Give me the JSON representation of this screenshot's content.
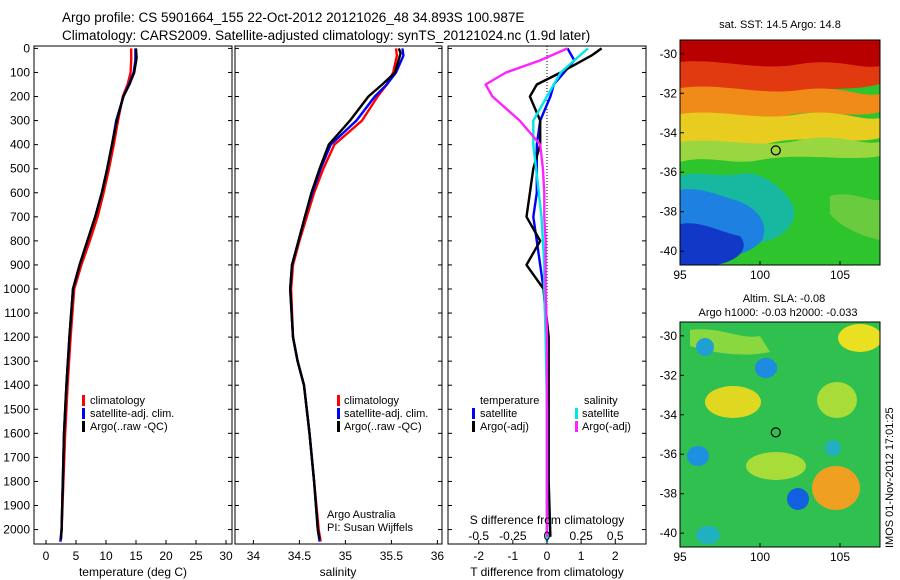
{
  "header": {
    "line1": "Argo profile: CS 5901664_155 22-Oct-2012 20121026_48 34.893S 100.987E",
    "line2": "Climatology: CARS2009. Satellite-adjusted climatology: synTS_20121024.nc (1.9d later)"
  },
  "colors": {
    "climatology": "#ff0000",
    "satellite": "#0000ff",
    "argo": "#000000",
    "sal_satellite": "#00e5e5",
    "sal_argo": "#ff22ff"
  },
  "chart_data": [
    {
      "id": "temperature",
      "type": "line",
      "xlabel": "temperature (deg C)",
      "xlim": [
        -2,
        31
      ],
      "xticks": [
        0,
        5,
        10,
        15,
        20,
        25,
        30
      ],
      "xticklabels": [
        "0",
        "5",
        "10",
        "15",
        "20",
        "25",
        "30"
      ],
      "ylim": [
        2060,
        -10
      ],
      "yticks": [
        0,
        100,
        200,
        300,
        400,
        500,
        600,
        700,
        800,
        900,
        1000,
        1100,
        1200,
        1300,
        1400,
        1500,
        1600,
        1700,
        1800,
        1900,
        2000
      ],
      "yticklabels": [
        "0",
        "100",
        "200",
        "300",
        "400",
        "500",
        "600",
        "700",
        "800",
        "900",
        "1000",
        "1100",
        "1200",
        "1300",
        "1400",
        "1500",
        "1600",
        "1700",
        "1800",
        "1900",
        "2000"
      ],
      "legend": {
        "position": "bottom-right",
        "items": [
          "climatology",
          "satellite-adj. clim.",
          "Argo(..raw -QC)"
        ]
      },
      "series": [
        {
          "name": "climatology",
          "color": "#ff0000",
          "x": [
            14.2,
            14.2,
            14.1,
            13.6,
            12.8,
            12.0,
            11.3,
            10.5,
            9.6,
            8.6,
            7.3,
            5.9,
            4.7,
            4.1,
            3.6,
            3.2,
            2.9,
            2.6,
            2.4
          ],
          "y": [
            0,
            50,
            100,
            150,
            200,
            300,
            400,
            500,
            600,
            700,
            800,
            900,
            1000,
            1200,
            1400,
            1600,
            1800,
            2000,
            2050
          ]
        },
        {
          "name": "satellite-adj. clim.",
          "color": "#0000ff",
          "x": [
            14.9,
            14.9,
            14.6,
            13.8,
            12.9,
            11.7,
            11.0,
            10.2,
            9.3,
            8.2,
            6.9,
            5.6,
            4.5,
            3.9,
            3.4,
            3.0,
            2.8,
            2.6,
            2.4
          ],
          "y": [
            0,
            50,
            100,
            150,
            200,
            300,
            400,
            500,
            600,
            700,
            800,
            900,
            1000,
            1200,
            1400,
            1600,
            1800,
            2000,
            2050
          ]
        },
        {
          "name": "Argo(..raw -QC)",
          "color": "#000000",
          "x": [
            15.0,
            15.1,
            14.7,
            13.9,
            12.9,
            11.8,
            11.0,
            10.2,
            9.3,
            8.2,
            6.9,
            5.6,
            4.5,
            3.9,
            3.4,
            3.0,
            2.8,
            2.6,
            2.5
          ],
          "y": [
            0,
            40,
            100,
            150,
            200,
            300,
            400,
            500,
            600,
            700,
            800,
            900,
            1000,
            1200,
            1400,
            1600,
            1800,
            2000,
            2040
          ]
        }
      ]
    },
    {
      "id": "salinity",
      "type": "line",
      "xlabel": "salinity",
      "xlim": [
        33.8,
        36.05
      ],
      "xticks": [
        34,
        34.5,
        35,
        35.5,
        36
      ],
      "xticklabels": [
        "34",
        "34.5",
        "35",
        "35.5",
        "36"
      ],
      "ylim": [
        2060,
        -10
      ],
      "annotation": [
        "Argo Australia",
        "PI: Susan Wijffels"
      ],
      "legend": {
        "position": "bottom-right",
        "items": [
          "climatology",
          "satellite-adj. clim.",
          "Argo(..raw -QC)"
        ]
      },
      "series": [
        {
          "name": "climatology",
          "color": "#ff0000",
          "x": [
            35.55,
            35.56,
            35.52,
            35.45,
            35.35,
            35.18,
            34.88,
            34.76,
            34.66,
            34.58,
            34.5,
            34.43,
            34.41,
            34.43,
            34.48,
            34.55,
            34.61,
            34.66,
            34.71,
            34.73
          ],
          "y": [
            0,
            30,
            100,
            150,
            200,
            300,
            400,
            500,
            600,
            700,
            800,
            900,
            1000,
            1200,
            1300,
            1400,
            1600,
            1800,
            2000,
            2050
          ]
        },
        {
          "name": "satellite-adj. clim.",
          "color": "#0000ff",
          "x": [
            35.62,
            35.63,
            35.55,
            35.45,
            35.32,
            35.12,
            34.84,
            34.73,
            34.64,
            34.56,
            34.49,
            34.42,
            34.4,
            34.43,
            34.48,
            34.55,
            34.61,
            34.66,
            34.7,
            34.72
          ],
          "y": [
            0,
            30,
            100,
            150,
            200,
            300,
            400,
            500,
            600,
            700,
            800,
            900,
            1000,
            1200,
            1300,
            1400,
            1600,
            1800,
            2000,
            2050
          ]
        },
        {
          "name": "Argo(..raw -QC)",
          "color": "#000000",
          "x": [
            35.58,
            35.6,
            35.54,
            35.4,
            35.25,
            35.05,
            34.82,
            34.72,
            34.63,
            34.56,
            34.49,
            34.42,
            34.4,
            34.43,
            34.48,
            34.55,
            34.61,
            34.66,
            34.7,
            34.72
          ],
          "y": [
            0,
            20,
            100,
            150,
            200,
            300,
            400,
            500,
            600,
            700,
            800,
            900,
            1000,
            1200,
            1300,
            1400,
            1600,
            1800,
            2000,
            2040
          ]
        }
      ]
    },
    {
      "id": "difference",
      "type": "line",
      "xlabel": "T difference from climatology",
      "xlabel_top": "S difference from climatology",
      "xlim": [
        -2.9,
        2.9
      ],
      "xticks": [
        -2,
        -1,
        0,
        1,
        2
      ],
      "xticklabels": [
        "-2",
        "-1",
        "0",
        "1",
        "2"
      ],
      "sal_xticks": [
        -0.5,
        -0.25,
        0,
        0.25,
        0.5
      ],
      "sal_xticklabels": [
        "-0.5",
        "-0.25",
        "0",
        "0.25",
        "0.5"
      ],
      "sal_scale": 4,
      "ylim": [
        2060,
        -10
      ],
      "legend": {
        "temperature_title": "temperature",
        "salinity_title": "salinity",
        "items": [
          "satellite",
          "Argo(-adj)",
          "satellite",
          "Argo(-adj)"
        ]
      },
      "series": [
        {
          "name": "T satellite",
          "color": "#0000ff",
          "x": [
            0.6,
            0.8,
            0.5,
            0.2,
            0.1,
            -0.2,
            -0.3,
            -0.3,
            -0.3,
            -0.4,
            -0.3,
            -0.2,
            -0.1,
            0,
            0,
            0,
            0
          ],
          "y": [
            0,
            50,
            100,
            150,
            200,
            300,
            400,
            500,
            600,
            700,
            800,
            900,
            1000,
            1200,
            1500,
            1800,
            2050
          ]
        },
        {
          "name": "T Argo(-adj)",
          "color": "#000000",
          "x": [
            1.6,
            1.3,
            0.4,
            -0.3,
            -0.5,
            -0.2,
            -0.2,
            -0.4,
            -0.5,
            -0.6,
            -0.2,
            -0.6,
            -0.1,
            0.05,
            0.05,
            0.05,
            0.1
          ],
          "y": [
            0,
            30,
            100,
            150,
            200,
            300,
            400,
            500,
            600,
            700,
            800,
            900,
            1000,
            1200,
            1500,
            1800,
            2030
          ]
        },
        {
          "name": "S satellite",
          "color": "#00e5e5",
          "x": [
            0.3,
            0.2,
            0.1,
            0.05,
            0,
            -0.1,
            -0.1,
            -0.08,
            -0.06,
            -0.04,
            -0.03,
            -0.02,
            -0.02,
            -0.01,
            0,
            0,
            0
          ],
          "y": [
            0,
            50,
            100,
            150,
            200,
            300,
            400,
            500,
            600,
            700,
            800,
            900,
            1000,
            1200,
            1500,
            1800,
            2050
          ]
        },
        {
          "name": "S Argo(-adj)",
          "color": "#ff22ff",
          "x": [
            0.15,
            -0.05,
            -0.3,
            -0.45,
            -0.4,
            -0.2,
            -0.05,
            -0.03,
            -0.02,
            -0.02,
            -0.01,
            -0.01,
            -0.01,
            0,
            0,
            0,
            0
          ],
          "y": [
            0,
            50,
            100,
            150,
            200,
            300,
            400,
            500,
            600,
            700,
            800,
            900,
            1000,
            1200,
            1500,
            1800,
            2030
          ]
        }
      ]
    },
    {
      "id": "sst_map",
      "type": "heatmap",
      "title": "sat. SST: 14.5 Argo: 14.8",
      "xlim": [
        95,
        107.5
      ],
      "ylim": [
        -40.7,
        -29.3
      ],
      "xticks": [
        95,
        100,
        105
      ],
      "xticklabels": [
        "95",
        "100",
        "105"
      ],
      "yticks": [
        -30,
        -32,
        -34,
        -36,
        -38,
        -40
      ],
      "yticklabels": [
        "-30",
        "-32",
        "-34",
        "-36",
        "-38",
        "-40"
      ],
      "marker": {
        "lon": 100.987,
        "lat": -34.893
      }
    },
    {
      "id": "sla_map",
      "type": "heatmap",
      "title_line1": "Altim. SLA: -0.08",
      "title_line2": "Argo h1000: -0.03 h2000: -0.033",
      "xlim": [
        95,
        107.5
      ],
      "ylim": [
        -40.7,
        -29.3
      ],
      "xticks": [
        95,
        100,
        105
      ],
      "xticklabels": [
        "95",
        "100",
        "105"
      ],
      "yticks": [
        -30,
        -32,
        -34,
        -36,
        -38,
        -40
      ],
      "yticklabels": [
        "-30",
        "-32",
        "-34",
        "-36",
        "-38",
        "-40"
      ],
      "marker": {
        "lon": 100.987,
        "lat": -34.893
      }
    }
  ],
  "footer": {
    "stamp": "IMOS 01-Nov-2012 17:01:25"
  }
}
